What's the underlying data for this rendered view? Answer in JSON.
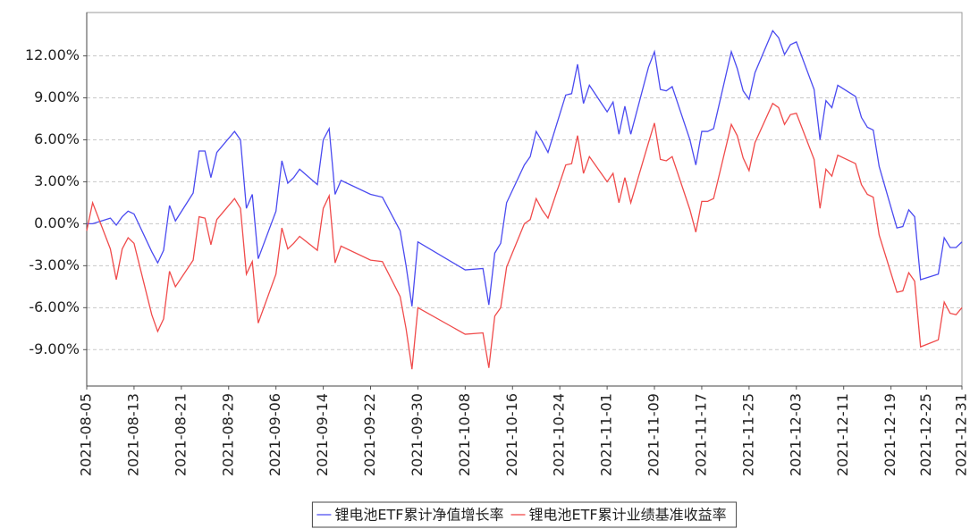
{
  "chart_data": {
    "type": "line",
    "x": [
      "2021-08-05",
      "2021-08-06",
      "2021-08-09",
      "2021-08-10",
      "2021-08-11",
      "2021-08-12",
      "2021-08-13",
      "2021-08-16",
      "2021-08-17",
      "2021-08-18",
      "2021-08-19",
      "2021-08-20",
      "2021-08-23",
      "2021-08-24",
      "2021-08-25",
      "2021-08-26",
      "2021-08-27",
      "2021-08-30",
      "2021-08-31",
      "2021-09-01",
      "2021-09-02",
      "2021-09-03",
      "2021-09-06",
      "2021-09-07",
      "2021-09-08",
      "2021-09-09",
      "2021-09-10",
      "2021-09-13",
      "2021-09-14",
      "2021-09-15",
      "2021-09-16",
      "2021-09-17",
      "2021-09-22",
      "2021-09-24",
      "2021-09-27",
      "2021-09-28",
      "2021-09-29",
      "2021-09-30",
      "2021-10-08",
      "2021-10-11",
      "2021-10-12",
      "2021-10-13",
      "2021-10-14",
      "2021-10-15",
      "2021-10-18",
      "2021-10-19",
      "2021-10-20",
      "2021-10-21",
      "2021-10-22",
      "2021-10-25",
      "2021-10-26",
      "2021-10-27",
      "2021-10-28",
      "2021-10-29",
      "2021-11-01",
      "2021-11-02",
      "2021-11-03",
      "2021-11-04",
      "2021-11-05",
      "2021-11-08",
      "2021-11-09",
      "2021-11-10",
      "2021-11-11",
      "2021-11-12",
      "2021-11-15",
      "2021-11-16",
      "2021-11-17",
      "2021-11-18",
      "2021-11-19",
      "2021-11-22",
      "2021-11-23",
      "2021-11-24",
      "2021-11-25",
      "2021-11-26",
      "2021-11-29",
      "2021-11-30",
      "2021-12-01",
      "2021-12-02",
      "2021-12-03",
      "2021-12-06",
      "2021-12-07",
      "2021-12-08",
      "2021-12-09",
      "2021-12-10",
      "2021-12-13",
      "2021-12-14",
      "2021-12-15",
      "2021-12-16",
      "2021-12-17",
      "2021-12-20",
      "2021-12-21",
      "2021-12-22",
      "2021-12-23",
      "2021-12-24",
      "2021-12-27",
      "2021-12-28",
      "2021-12-29",
      "2021-12-30",
      "2021-12-31"
    ],
    "series": [
      {
        "name": "锂电池ETF累计净值增长率",
        "color": "#4b4bf0",
        "values": [
          0.0,
          0.0,
          0.4,
          -0.1,
          0.5,
          0.9,
          0.7,
          -2.0,
          -2.8,
          -1.9,
          1.3,
          0.2,
          2.2,
          5.2,
          5.2,
          3.3,
          5.1,
          6.6,
          6.0,
          1.1,
          2.1,
          -2.5,
          0.9,
          4.5,
          2.9,
          3.3,
          3.9,
          2.8,
          6.0,
          6.8,
          2.1,
          3.1,
          2.1,
          1.9,
          -0.5,
          -3.0,
          -5.9,
          -1.3,
          -3.3,
          -3.2,
          -5.8,
          -2.1,
          -1.4,
          1.5,
          4.2,
          4.8,
          6.6,
          5.9,
          5.1,
          9.2,
          9.3,
          11.4,
          8.6,
          9.9,
          8.0,
          8.7,
          6.4,
          8.4,
          6.4,
          11.2,
          12.3,
          9.6,
          9.5,
          9.8,
          6.0,
          4.2,
          6.6,
          6.6,
          6.8,
          12.3,
          11.1,
          9.5,
          8.9,
          10.8,
          13.8,
          13.3,
          12.1,
          12.8,
          13.0,
          9.6,
          6.0,
          8.8,
          8.3,
          9.9,
          9.1,
          7.6,
          6.9,
          6.7,
          4.1,
          -0.3,
          -0.2,
          1.0,
          0.5,
          -4.0,
          -3.6,
          -1.0,
          -1.7,
          -1.7,
          -1.3
        ]
      },
      {
        "name": "锂电池ETF累计业绩基准收益率",
        "color": "#f04b4b",
        "values": [
          -0.5,
          1.5,
          -1.8,
          -4.0,
          -1.8,
          -1.0,
          -1.4,
          -6.5,
          -7.7,
          -6.8,
          -3.4,
          -4.5,
          -2.6,
          0.5,
          0.4,
          -1.5,
          0.3,
          1.8,
          1.1,
          -3.6,
          -2.7,
          -7.1,
          -3.6,
          -0.3,
          -1.8,
          -1.4,
          -0.9,
          -1.9,
          1.1,
          2.0,
          -2.8,
          -1.6,
          -2.6,
          -2.7,
          -5.2,
          -7.5,
          -10.4,
          -6.0,
          -7.9,
          -7.8,
          -10.3,
          -6.6,
          -6.0,
          -3.1,
          0.0,
          0.3,
          1.8,
          1.0,
          0.4,
          4.2,
          4.3,
          6.3,
          3.6,
          4.8,
          3.0,
          3.6,
          1.5,
          3.3,
          1.5,
          5.8,
          7.2,
          4.6,
          4.5,
          4.8,
          1.0,
          -0.6,
          1.6,
          1.6,
          1.8,
          7.1,
          6.3,
          4.7,
          3.8,
          5.8,
          8.6,
          8.3,
          7.1,
          7.8,
          7.9,
          4.6,
          1.1,
          3.9,
          3.4,
          4.9,
          4.3,
          2.8,
          2.1,
          1.9,
          -0.8,
          -4.9,
          -4.8,
          -3.5,
          -4.1,
          -8.8,
          -8.3,
          -5.6,
          -6.4,
          -6.5,
          -6.0
        ]
      }
    ],
    "xlim": [
      "2021-08-05",
      "2021-12-31"
    ],
    "xticks": [
      "2021-08-05",
      "2021-08-13",
      "2021-08-21",
      "2021-08-29",
      "2021-09-06",
      "2021-09-14",
      "2021-09-22",
      "2021-09-30",
      "2021-10-08",
      "2021-10-16",
      "2021-10-24",
      "2021-11-01",
      "2021-11-09",
      "2021-11-17",
      "2021-11-25",
      "2021-12-03",
      "2021-12-11",
      "2021-12-19",
      "2021-12-25",
      "2021-12-31"
    ],
    "ylim": [
      -11.6,
      15.1
    ],
    "yticks": [
      {
        "value": -9,
        "label": "-9.00%"
      },
      {
        "value": -6,
        "label": "-6.00%"
      },
      {
        "value": -3,
        "label": "-3.00%"
      },
      {
        "value": 0,
        "label": "0.00%"
      },
      {
        "value": 3,
        "label": "3.00%"
      },
      {
        "value": 6,
        "label": "6.00%"
      },
      {
        "value": 9,
        "label": "9.00%"
      },
      {
        "value": 12,
        "label": "12.00%"
      }
    ],
    "grid": true,
    "legend": "bottom"
  }
}
